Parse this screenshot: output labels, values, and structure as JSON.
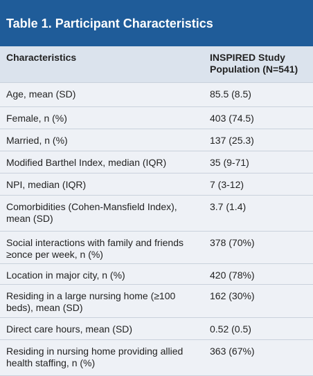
{
  "title": "Table 1. Participant Characteristics",
  "table": {
    "header": [
      "Characteristics",
      "INSPIRED Study Population (N=541)"
    ],
    "rows": [
      [
        "Age, mean (SD)",
        "85.5 (8.5)"
      ],
      [
        "Female, n (%)",
        "403 (74.5)"
      ],
      [
        "Married, n (%)",
        "137 (25.3)"
      ],
      [
        "Modified Barthel Index, median (IQR)",
        "35 (9-71)"
      ],
      [
        "NPI, median (IQR)",
        "7 (3-12)"
      ],
      [
        "Comorbidities (Cohen-Mansfield Index), mean (SD)",
        "3.7 (1.4)"
      ],
      [
        "Social interactions with family and friends ≥once per week, n (%)",
        "378 (70%)"
      ],
      [
        "Location in major city, n (%)",
        "420 (78%)"
      ],
      [
        "Residing in a large nursing home (≥100 beds), mean (SD)",
        "162 (30%)"
      ],
      [
        "Direct care hours, mean (SD)",
        "0.52 (0.5)"
      ],
      [
        "Residing in nursing home providing allied health staffing, n (%)",
        "363 (67%)"
      ]
    ]
  }
}
